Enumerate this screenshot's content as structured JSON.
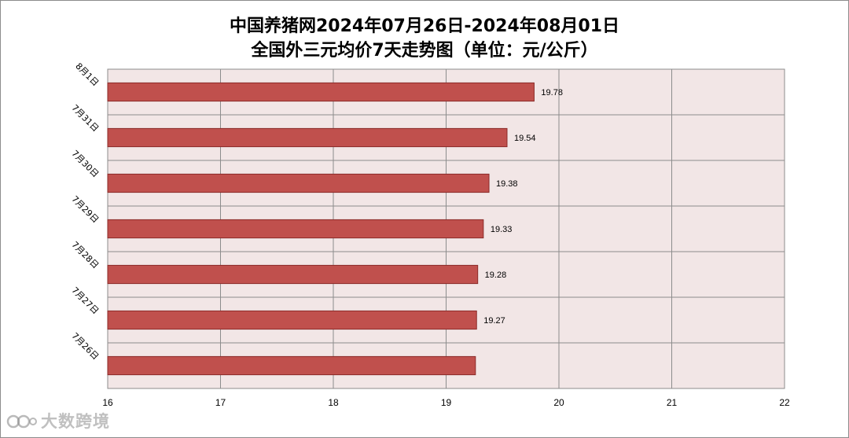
{
  "title_line1": "中国养猪网2024年07月26日-2024年08月01日",
  "title_line2": "全国外三元均价7天走势图（单位：元/公斤）",
  "watermark": "大数跨境",
  "colors": {
    "bar": "#c0504d",
    "bar_stroke": "#8b2b29",
    "plot_bg": "#f2e6e6",
    "grid": "#8c8c8c"
  },
  "chart_data": {
    "type": "bar",
    "orientation": "horizontal",
    "categories": [
      "8月1日",
      "7月31日",
      "7月30日",
      "7月29日",
      "7月28日",
      "7月27日",
      "7月26日"
    ],
    "values": [
      19.78,
      19.54,
      19.38,
      19.33,
      19.28,
      19.27,
      19.26
    ],
    "data_labels": [
      "19.78",
      "19.54",
      "19.38",
      "19.33",
      "19.28",
      "19.27",
      ""
    ],
    "xlim": [
      16,
      22
    ],
    "xticks": [
      "16",
      "17",
      "18",
      "19",
      "20",
      "21",
      "22"
    ],
    "grid": true
  }
}
